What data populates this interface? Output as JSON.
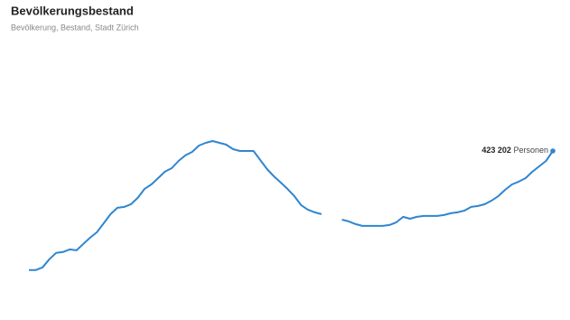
{
  "chart_data": {
    "type": "line",
    "title": "Bevölkerungsbestand",
    "subtitle": "Bevölkerung, Bestand, Stadt Zürich",
    "series": [
      {
        "name": "Bevölkerung",
        "color": "#2f86d0",
        "values": [
          316300,
          316300,
          318700,
          326000,
          331700,
          332500,
          334900,
          334100,
          339800,
          345400,
          350300,
          358400,
          366500,
          372200,
          373000,
          375400,
          381100,
          389200,
          393200,
          398900,
          404600,
          407800,
          414300,
          419200,
          422400,
          428100,
          430500,
          432100,
          430500,
          428900,
          424800,
          423200,
          423200,
          423200,
          415100,
          407000,
          400500,
          394900,
          389200,
          382700,
          374600,
          370600,
          368100,
          366500,
          null,
          null,
          361600,
          360000,
          357600,
          356000,
          356000,
          356000,
          356000,
          356800,
          359200,
          364100,
          362400,
          364100,
          364900,
          364900,
          364900,
          365700,
          367300,
          368100,
          369700,
          373000,
          373800,
          375400,
          378700,
          382700,
          388400,
          393200,
          395700,
          398900,
          404600,
          409400,
          414300,
          423202
        ],
        "value_labels": [
          null,
          null,
          null,
          null,
          null,
          null,
          null,
          null,
          null,
          null,
          null,
          null,
          null,
          null,
          null,
          null,
          null,
          null,
          null,
          null,
          null,
          null,
          null,
          null,
          null,
          null,
          null,
          null,
          null,
          null,
          null,
          null,
          null,
          null,
          null,
          null,
          null,
          null,
          null,
          null,
          null,
          null,
          null,
          null,
          null,
          null,
          null,
          null,
          null,
          null,
          null,
          null,
          null,
          null,
          null,
          null,
          null,
          null,
          null,
          null,
          null,
          null,
          null,
          null,
          null,
          null,
          null,
          null,
          null,
          null,
          null,
          null,
          null,
          null,
          null,
          null,
          null,
          "423 202"
        ],
        "value_unit": "Personen"
      }
    ],
    "ylim": [
      291000,
      510000
    ],
    "grid": false
  }
}
